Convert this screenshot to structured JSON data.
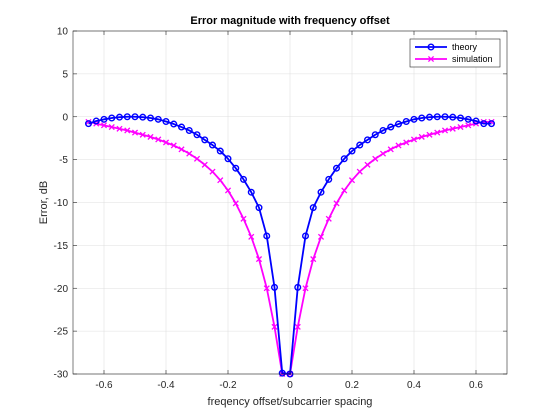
{
  "chart_data": {
    "type": "line",
    "title": "Error magnitude with frequency offset",
    "xlabel": "freqency offset/subcarrier spacing",
    "ylabel": "Error, dB",
    "xlim": [
      -0.7,
      0.7
    ],
    "ylim": [
      -30,
      10
    ],
    "xticks": [
      -0.6,
      -0.4,
      -0.2,
      0,
      0.2,
      0.4,
      0.6
    ],
    "xtick_labels": [
      "-0.6",
      "-0.4",
      "-0.2",
      "0",
      "0.2",
      "0.4",
      "0.6"
    ],
    "yticks": [
      -30,
      -25,
      -20,
      -15,
      -10,
      -5,
      0,
      5,
      10
    ],
    "ytick_labels": [
      "-30",
      "-25",
      "-20",
      "-15",
      "-10",
      "-5",
      "0",
      "5",
      "10"
    ],
    "grid": true,
    "legend_position": "top-right",
    "series": [
      {
        "name": "theory",
        "color": "#0000ff",
        "marker": "circle",
        "x": [
          -0.65,
          -0.625,
          -0.6,
          -0.575,
          -0.55,
          -0.525,
          -0.5,
          -0.475,
          -0.45,
          -0.425,
          -0.4,
          -0.375,
          -0.35,
          -0.325,
          -0.3,
          -0.275,
          -0.25,
          -0.225,
          -0.2,
          -0.175,
          -0.15,
          -0.125,
          -0.1,
          -0.075,
          -0.05,
          -0.025,
          0,
          0.025,
          0.05,
          0.075,
          0.1,
          0.125,
          0.15,
          0.175,
          0.2,
          0.225,
          0.25,
          0.275,
          0.3,
          0.325,
          0.35,
          0.375,
          0.4,
          0.425,
          0.45,
          0.475,
          0.5,
          0.525,
          0.55,
          0.575,
          0.6,
          0.625,
          0.65
        ],
        "y": [
          -0.8,
          -0.5,
          -0.3,
          -0.15,
          -0.05,
          0,
          0,
          -0.05,
          -0.15,
          -0.3,
          -0.55,
          -0.85,
          -1.2,
          -1.6,
          -2.1,
          -2.7,
          -3.3,
          -4.0,
          -4.9,
          -6.0,
          -7.3,
          -8.8,
          -10.6,
          -13.9,
          -19.9,
          -29.9,
          -30,
          -19.9,
          -13.9,
          -10.6,
          -8.8,
          -7.3,
          -6.0,
          -4.9,
          -4.0,
          -3.3,
          -2.7,
          -2.1,
          -1.6,
          -1.2,
          -0.85,
          -0.55,
          -0.3,
          -0.15,
          -0.05,
          0,
          0,
          -0.05,
          -0.15,
          -0.3,
          -0.5,
          -0.8,
          -0.8
        ]
      },
      {
        "name": "simulation",
        "color": "#ff00ff",
        "marker": "x",
        "x": [
          -0.65,
          -0.625,
          -0.6,
          -0.575,
          -0.55,
          -0.525,
          -0.5,
          -0.475,
          -0.45,
          -0.425,
          -0.4,
          -0.375,
          -0.35,
          -0.325,
          -0.3,
          -0.275,
          -0.25,
          -0.225,
          -0.2,
          -0.175,
          -0.15,
          -0.125,
          -0.1,
          -0.075,
          -0.05,
          -0.025,
          0,
          0.025,
          0.05,
          0.075,
          0.1,
          0.125,
          0.15,
          0.175,
          0.2,
          0.225,
          0.25,
          0.275,
          0.3,
          0.325,
          0.35,
          0.375,
          0.4,
          0.425,
          0.45,
          0.475,
          0.5,
          0.525,
          0.55,
          0.575,
          0.6,
          0.625,
          0.65
        ],
        "y": [
          -0.6,
          -0.8,
          -1.0,
          -1.2,
          -1.4,
          -1.6,
          -1.85,
          -2.1,
          -2.35,
          -2.65,
          -3.0,
          -3.35,
          -3.8,
          -4.3,
          -4.9,
          -5.6,
          -6.4,
          -7.4,
          -8.6,
          -10.1,
          -11.9,
          -14.0,
          -16.6,
          -20.0,
          -24.5,
          -30.0,
          -30.0,
          -24.5,
          -20.0,
          -16.6,
          -14.0,
          -11.9,
          -10.1,
          -8.6,
          -7.4,
          -6.4,
          -5.6,
          -4.9,
          -4.3,
          -3.8,
          -3.35,
          -3.0,
          -2.65,
          -2.35,
          -2.1,
          -1.85,
          -1.6,
          -1.4,
          -1.2,
          -1.0,
          -0.8,
          -0.6,
          -0.6
        ]
      }
    ]
  }
}
